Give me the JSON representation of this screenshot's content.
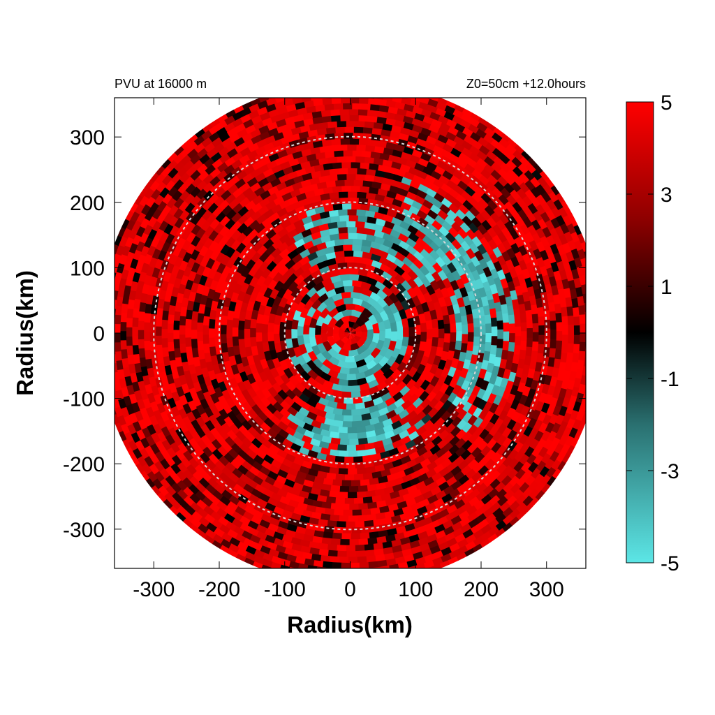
{
  "chart_data": {
    "type": "heatmap",
    "title_left": "PVU at 16000 m",
    "title_right": "Z0=50cm  +12.0hours",
    "xlabel": "Radius(km)",
    "ylabel": "Radius(km)",
    "xlim": [
      -360,
      360
    ],
    "ylim": [
      -360,
      360
    ],
    "x_ticks": [
      -300,
      -200,
      -100,
      0,
      100,
      200,
      300
    ],
    "y_ticks": [
      300,
      200,
      100,
      0,
      -100,
      -200,
      -300
    ],
    "domain_radius_km": 385,
    "range_rings_km": [
      100,
      200,
      300
    ],
    "grid": false,
    "colorbar": {
      "range": [
        -5,
        5
      ],
      "ticks": [
        5,
        3,
        1,
        -1,
        -3,
        -5
      ],
      "colors": [
        {
          "value": -5,
          "color": "#5ce6e6"
        },
        {
          "value": -2,
          "color": "#2a7070"
        },
        {
          "value": 0,
          "color": "#000000"
        },
        {
          "value": 2.5,
          "color": "#900000"
        },
        {
          "value": 5,
          "color": "#ff0000"
        }
      ]
    },
    "negative_regions": [
      {
        "label": "east-arc",
        "angle_deg": [
          -40,
          70
        ],
        "radius_km": [
          150,
          260
        ]
      },
      {
        "label": "south-arc",
        "angle_deg": [
          -125,
          -45
        ],
        "radius_km": [
          90,
          200
        ]
      },
      {
        "label": "north-patches",
        "angle_deg": [
          30,
          120
        ],
        "radius_km": [
          100,
          200
        ]
      },
      {
        "label": "core-speckle",
        "angle_deg": [
          -180,
          180
        ],
        "radius_km": [
          20,
          100
        ]
      }
    ]
  }
}
